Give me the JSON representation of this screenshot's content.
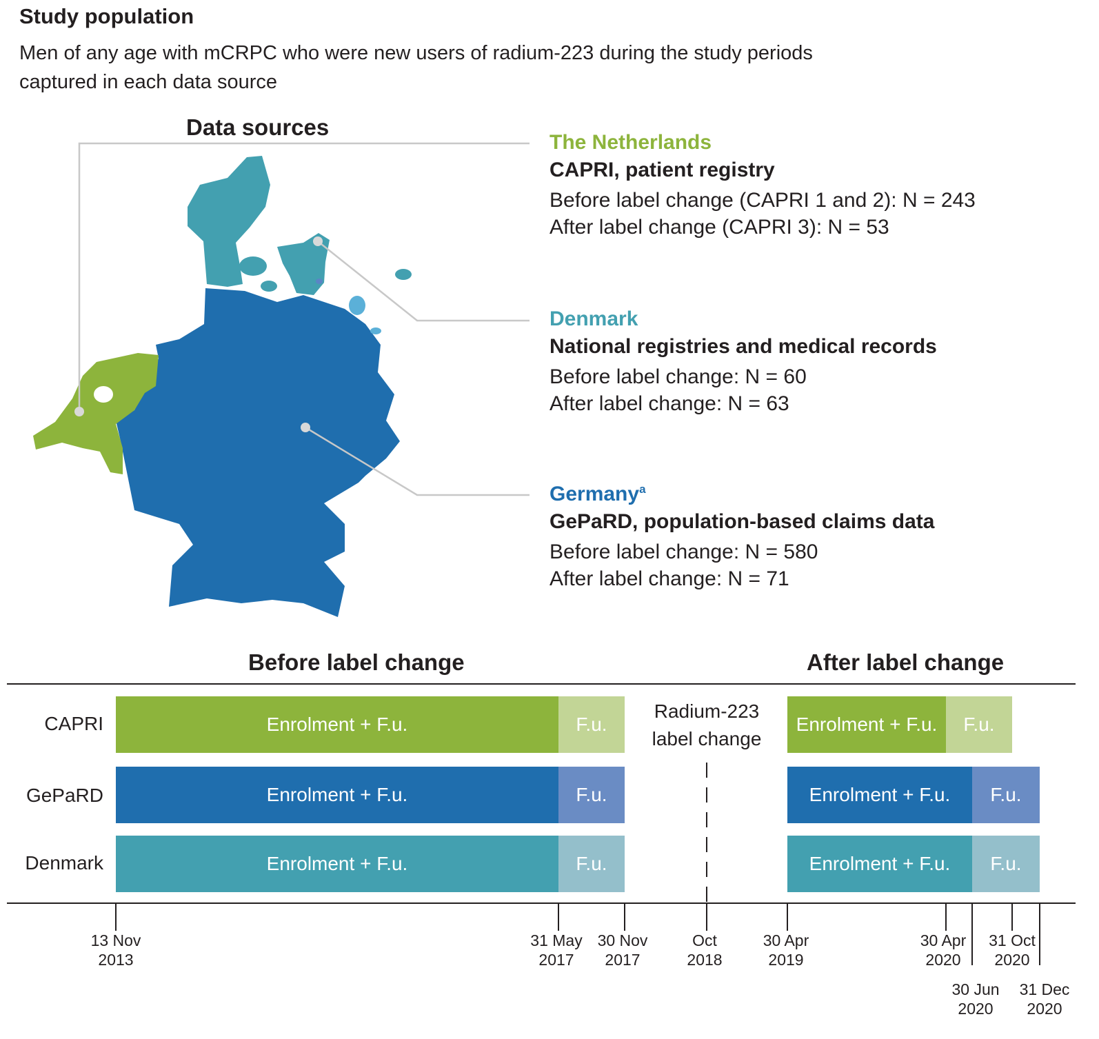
{
  "header": {
    "title": "Study population",
    "description_line1": "Men of any age with mCRPC who were new users of radium-223 during the study periods",
    "description_line2": "captured in each data source"
  },
  "data_sources": {
    "title": "Data sources",
    "netherlands": {
      "country": "The Netherlands",
      "source": "CAPRI, patient registry",
      "before": "Before label change (CAPRI 1 and 2): N = 243",
      "after": "After label change (CAPRI 3): N = 53"
    },
    "denmark": {
      "country": "Denmark",
      "source": "National registries and medical records",
      "before": "Before label change: N = 60",
      "after": "After label change: N = 63"
    },
    "germany": {
      "country": "Germany",
      "country_sup": "a",
      "source": "GePaRD, population-based claims data",
      "before": "Before label change: N = 580",
      "after": "After label change: N = 71"
    }
  },
  "colors": {
    "netherlands": "#8db43c",
    "denmark": "#43a0b0",
    "germany": "#1f6eae",
    "capri_fu": "#c2d596",
    "gepard_fu": "#6a8cc4",
    "denmark_fu": "#94bfcb",
    "leader": "#c8c8c8"
  },
  "timeline": {
    "before_title": "Before label change",
    "after_title": "After label change",
    "label_change_line1": "Radium-223",
    "label_change_line2": "label change",
    "rows": [
      {
        "name": "CAPRI",
        "before": [
          {
            "label": "Enrolment + F.u."
          },
          {
            "label": "F.u."
          }
        ],
        "after": [
          {
            "label": "Enrolment + F.u."
          },
          {
            "label": "F.u."
          }
        ]
      },
      {
        "name": "GePaRD",
        "before": [
          {
            "label": "Enrolment + F.u."
          },
          {
            "label": "F.u."
          }
        ],
        "after": [
          {
            "label": "Enrolment + F.u."
          },
          {
            "label": "F.u."
          }
        ]
      },
      {
        "name": "Denmark",
        "before": [
          {
            "label": "Enrolment + F.u."
          },
          {
            "label": "F.u."
          }
        ],
        "after": [
          {
            "label": "Enrolment + F.u."
          },
          {
            "label": "F.u."
          }
        ]
      }
    ],
    "ticks": [
      {
        "l1": "13 Nov",
        "l2": "2013"
      },
      {
        "l1": "31 May",
        "l2": "2017"
      },
      {
        "l1": "30 Nov",
        "l2": "2017"
      },
      {
        "l1": "Oct",
        "l2": "2018"
      },
      {
        "l1": "30 Apr",
        "l2": "2019"
      },
      {
        "l1": "30 Apr",
        "l2": "2020"
      },
      {
        "l1": "31 Oct",
        "l2": "2020"
      },
      {
        "l1": "30 Jun",
        "l2": "2020"
      },
      {
        "l1": "31 Dec",
        "l2": "2020"
      }
    ]
  }
}
